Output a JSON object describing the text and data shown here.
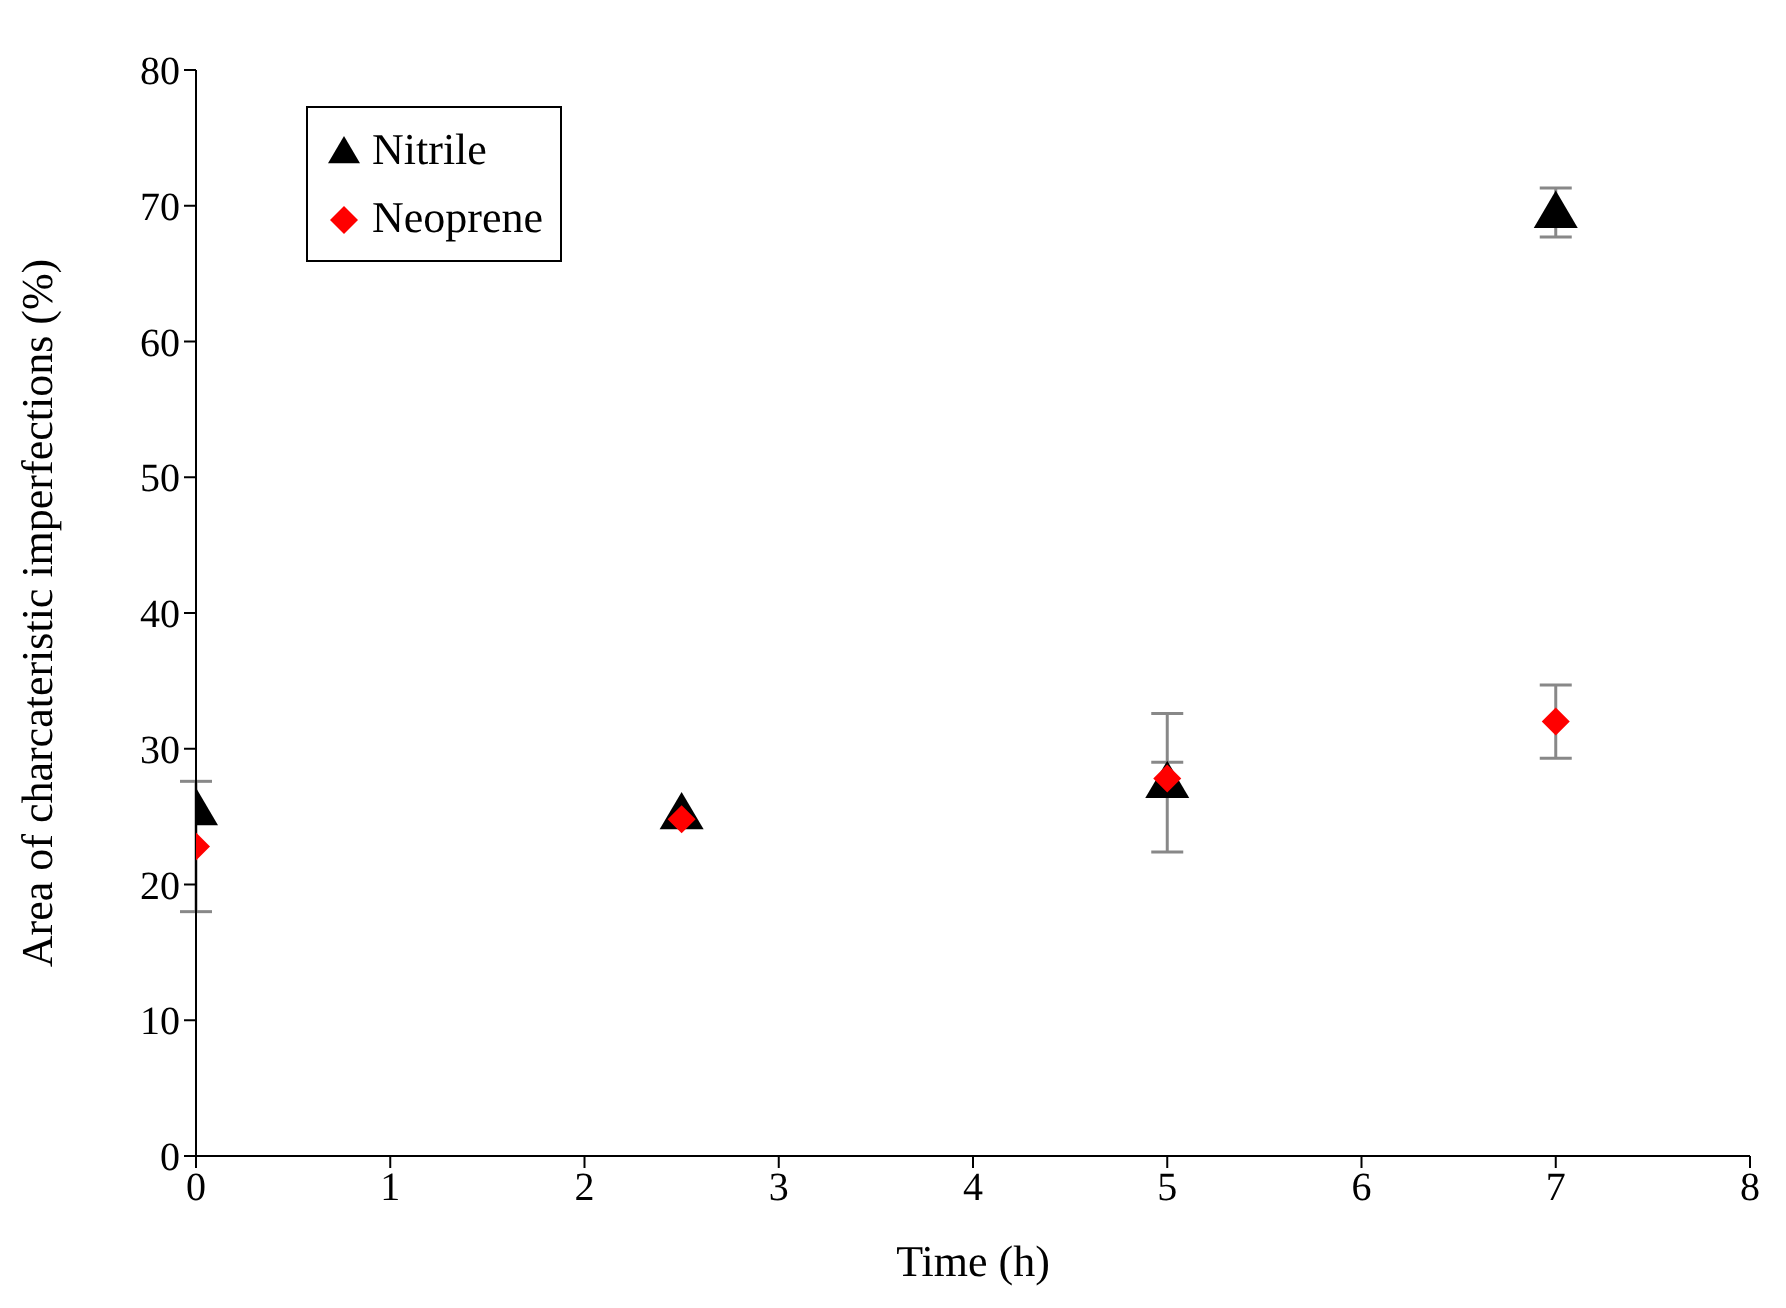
{
  "chart_data": {
    "type": "scatter",
    "xlabel": "Time (h)",
    "ylabel": "Area of charcateristic imperfections (%)",
    "x": [
      0,
      2.5,
      5,
      7
    ],
    "series": [
      {
        "name": "Nitrile",
        "color": "#000000",
        "marker": "triangle",
        "values": [
          25.5,
          25.2,
          27.5,
          69.5
        ],
        "errors": [
          null,
          null,
          5.1,
          1.8
        ]
      },
      {
        "name": "Neoprene",
        "color": "#ff0000",
        "marker": "diamond",
        "values": [
          22.8,
          24.8,
          27.8,
          32
        ],
        "errors": [
          4.8,
          null,
          1.2,
          2.7
        ]
      }
    ],
    "xlim": [
      0,
      8
    ],
    "xticks": [
      0,
      1,
      2,
      3,
      4,
      5,
      6,
      7,
      8
    ],
    "ylim": [
      0,
      80
    ],
    "yticks": [
      0,
      10,
      20,
      30,
      40,
      50,
      60,
      70,
      80
    ],
    "grid": false,
    "legend": "top left"
  }
}
